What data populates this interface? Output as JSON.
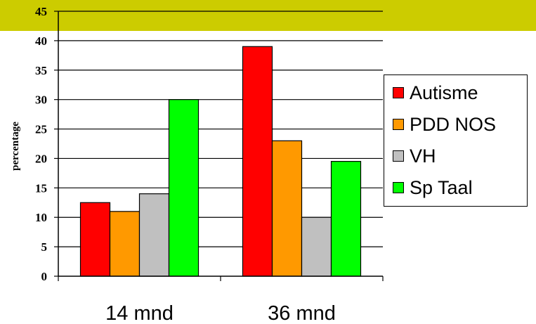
{
  "chart_data": {
    "type": "bar",
    "title": "",
    "xlabel": "",
    "ylabel": "percentage",
    "ylim": [
      0,
      45
    ],
    "yticks": [
      "0",
      "5",
      "10",
      "15",
      "20",
      "25",
      "30",
      "35",
      "40",
      "45"
    ],
    "categories": [
      "14 mnd",
      "36 mnd"
    ],
    "series": [
      {
        "name": "Autisme",
        "color": "#ff0000",
        "values": [
          12.5,
          39
        ]
      },
      {
        "name": "PDD NOS",
        "color": "#ff9900",
        "values": [
          11,
          23
        ]
      },
      {
        "name": "VH",
        "color": "#c0c0c0",
        "values": [
          14,
          10
        ]
      },
      {
        "name": "Sp Taal",
        "color": "#00ff00",
        "values": [
          30,
          19.5
        ]
      }
    ],
    "grid": true,
    "legend": "right",
    "background_band_color": "#cccc00"
  }
}
